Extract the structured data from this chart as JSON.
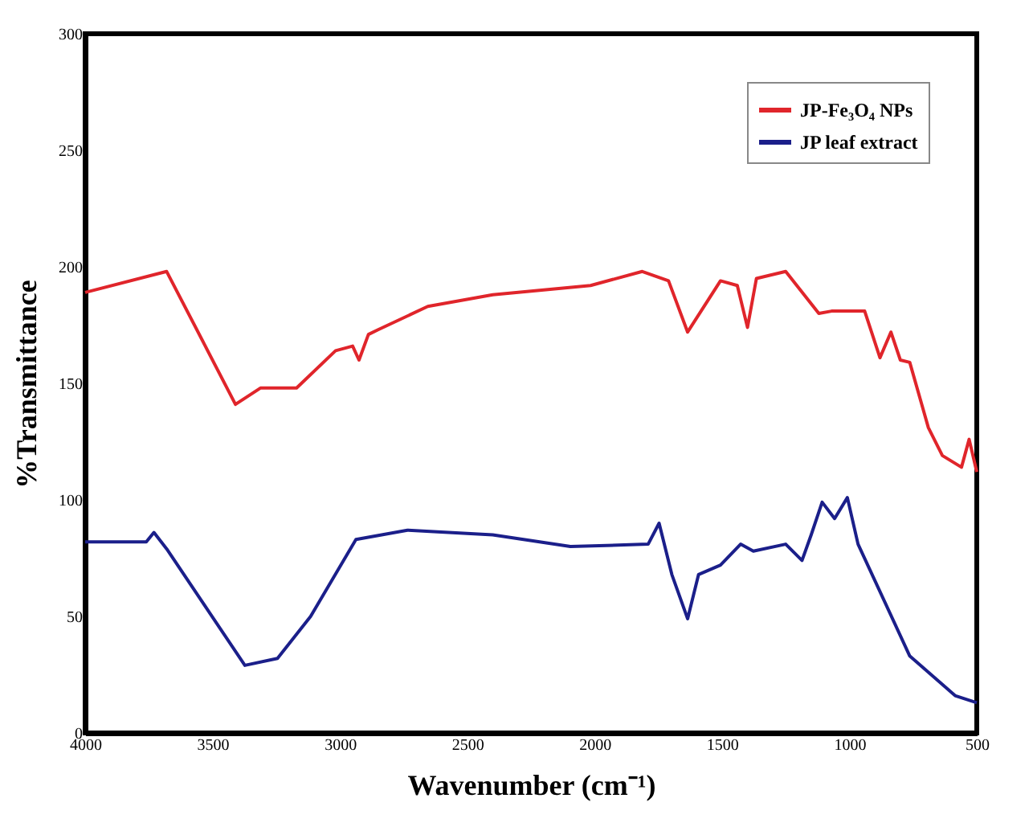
{
  "chart_data": {
    "type": "line",
    "xlabel": "Wavenumber (cm⁻¹)",
    "ylabel": "%Transmittance",
    "xlim": [
      4000,
      500
    ],
    "xticks": [
      4000,
      3500,
      3000,
      2500,
      2000,
      1500,
      1000,
      500
    ],
    "ylim": [
      0,
      300
    ],
    "yticks": [
      0,
      50,
      100,
      150,
      200,
      250,
      300
    ],
    "legend": "top right",
    "series": [
      {
        "name": "JP-Fe₃O₄ NPs",
        "color": "#e0252b",
        "x": [
          4000,
          3680,
          3410,
          3312,
          3170,
          3017,
          2950,
          2925,
          2888,
          2850,
          2655,
          2400,
          2016,
          1813,
          1710,
          1635,
          1506,
          1440,
          1400,
          1365,
          1250,
          1120,
          1070,
          940,
          880,
          837,
          800,
          763,
          690,
          635,
          560,
          530,
          500
        ],
        "values": [
          189,
          198,
          141,
          148,
          148,
          164,
          166,
          160,
          171,
          173,
          183,
          188,
          192,
          198,
          194,
          172,
          194,
          192,
          174,
          195,
          198,
          180,
          181,
          181,
          161,
          172,
          160,
          159,
          131,
          119,
          114,
          126,
          112
        ]
      },
      {
        "name": "JP leaf extract",
        "color": "#1b1f8a",
        "x": [
          4000,
          3760,
          3730,
          3680,
          3373,
          3245,
          3115,
          2937,
          2735,
          2400,
          2095,
          1790,
          1747,
          1697,
          1635,
          1592,
          1506,
          1427,
          1377,
          1250,
          1186,
          1150,
          1107,
          1058,
          1008,
          966,
          763,
          585,
          500
        ],
        "values": [
          82,
          82,
          86,
          79,
          29,
          32,
          50,
          83,
          87,
          85,
          80,
          81,
          90,
          68,
          49,
          68,
          72,
          81,
          78,
          81,
          74,
          85,
          99,
          92,
          101,
          81,
          33,
          16,
          13
        ]
      }
    ]
  }
}
